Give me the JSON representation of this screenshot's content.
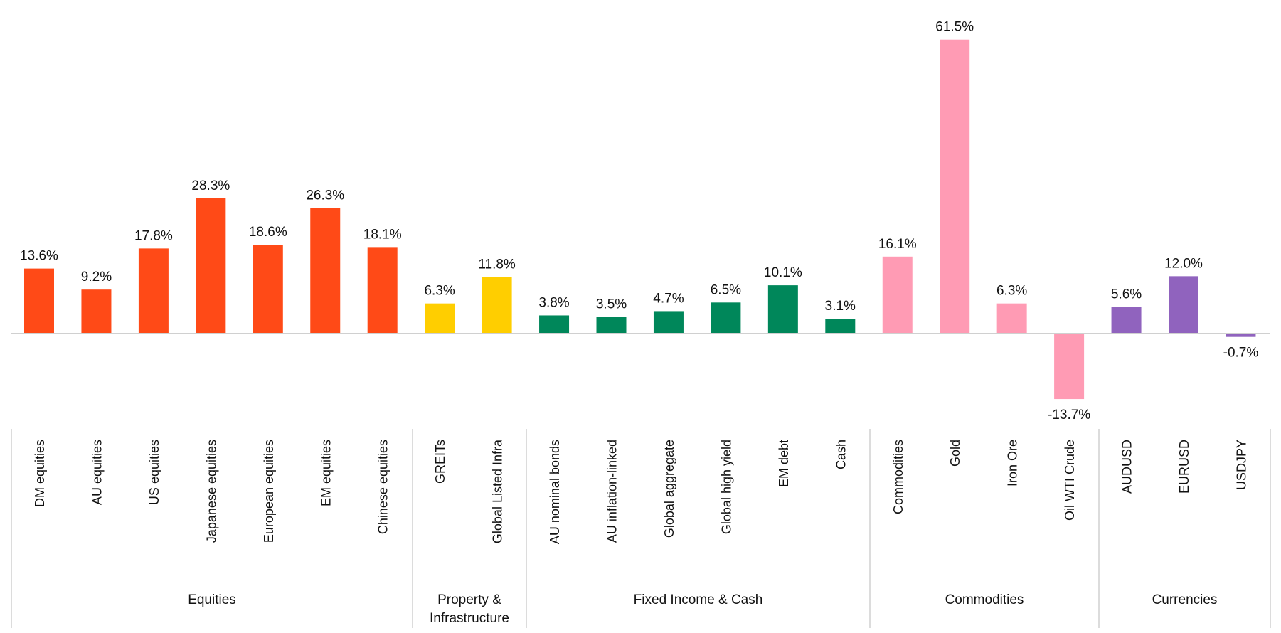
{
  "chart_data": {
    "type": "bar",
    "title": "",
    "xlabel": "",
    "ylabel": "",
    "value_format": "percent",
    "grid": false,
    "legend": "none",
    "categories": [
      "DM equities",
      "AU equities",
      "US equities",
      "Japanese equities",
      "European equities",
      "EM equities",
      "Chinese equities",
      "GREITs",
      "Global Listed Infra",
      "AU nominal bonds",
      "AU inflation-linked",
      "Global aggregate",
      "Global high yield",
      "EM debt",
      "Cash",
      "Commodities",
      "Gold",
      "Iron Ore",
      "Oil WTI Crude",
      "AUDUSD",
      "EURUSD",
      "USDJPY"
    ],
    "values": [
      13.6,
      9.2,
      17.8,
      28.3,
      18.6,
      26.3,
      18.1,
      6.3,
      11.8,
      3.8,
      3.5,
      4.7,
      6.5,
      10.1,
      3.1,
      16.1,
      61.5,
      6.3,
      -13.7,
      5.6,
      12.0,
      -0.7
    ],
    "data_labels": [
      "13.6%",
      "9.2%",
      "17.8%",
      "28.3%",
      "18.6%",
      "26.3%",
      "18.1%",
      "6.3%",
      "11.8%",
      "3.8%",
      "3.5%",
      "4.7%",
      "6.5%",
      "10.1%",
      "3.1%",
      "16.1%",
      "61.5%",
      "6.3%",
      "-13.7%",
      "5.6%",
      "12.0%",
      "-0.7%"
    ],
    "groups": [
      {
        "name": "Equities",
        "count": 7,
        "color": "#FF4A17"
      },
      {
        "name": "Property & Infrastructure",
        "lines": [
          "Property &",
          "Infrastructure"
        ],
        "count": 2,
        "color": "#FFCE00"
      },
      {
        "name": "Fixed Income & Cash",
        "count": 6,
        "color": "#00875A"
      },
      {
        "name": "Commodities",
        "count": 4,
        "color": "#FF9BB4"
      },
      {
        "name": "Currencies",
        "count": 3,
        "color": "#9063BE"
      }
    ]
  }
}
